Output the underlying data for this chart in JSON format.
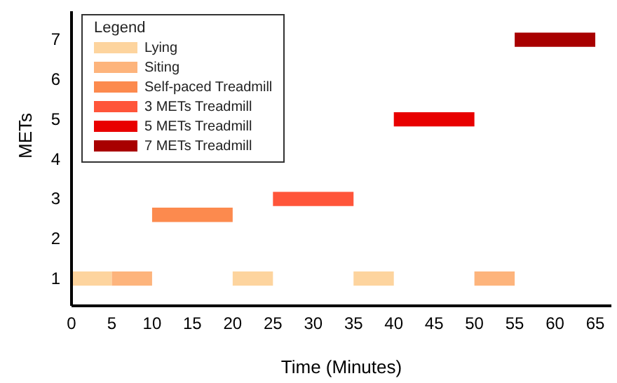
{
  "chart_data": {
    "type": "bar",
    "orientation": "horizontal",
    "xlabel": "Time (Minutes)",
    "ylabel": "METs",
    "xlim": [
      0,
      67
    ],
    "xticks": [
      0,
      5,
      10,
      15,
      20,
      25,
      30,
      35,
      40,
      45,
      50,
      55,
      60,
      65
    ],
    "ylim": [
      0.3,
      7.7
    ],
    "yticks": [
      1,
      2,
      3,
      4,
      5,
      6,
      7
    ],
    "legend": "top left",
    "legend_title": "Legend",
    "grid": false,
    "series": [
      {
        "name": "Lying",
        "color": "#fdd49e",
        "x": [
          1
        ],
        "base": [
          0
        ],
        "values": [
          5
        ]
      },
      {
        "color": "#fdd49e",
        "x": [
          1
        ],
        "base": [
          20
        ],
        "values": [
          5
        ]
      },
      {
        "color": "#fdd49e",
        "x": [
          1
        ],
        "base": [
          35
        ],
        "values": [
          5
        ]
      },
      {
        "name": "Siting",
        "color": "#fdb47c",
        "x": [
          1
        ],
        "base": [
          5
        ],
        "values": [
          5
        ]
      },
      {
        "color": "#fdb47c",
        "x": [
          1
        ],
        "base": [
          50
        ],
        "values": [
          5
        ]
      },
      {
        "name": "Self-paced Treadmill",
        "color": "#fc8a4e",
        "x": [
          2.6
        ],
        "base": [
          10
        ],
        "values": [
          10
        ]
      },
      {
        "name": "3 METs Treadmill",
        "color": "#ff553a",
        "x": [
          3
        ],
        "base": [
          25
        ],
        "values": [
          10
        ]
      },
      {
        "name": "5 METs Treadmill",
        "color": "#e80000",
        "x": [
          5
        ],
        "base": [
          40
        ],
        "values": [
          10
        ]
      },
      {
        "name": "7 METs Treadmill",
        "color": "#a80000",
        "x": [
          7
        ],
        "base": [
          55
        ],
        "values": [
          10
        ]
      }
    ]
  }
}
